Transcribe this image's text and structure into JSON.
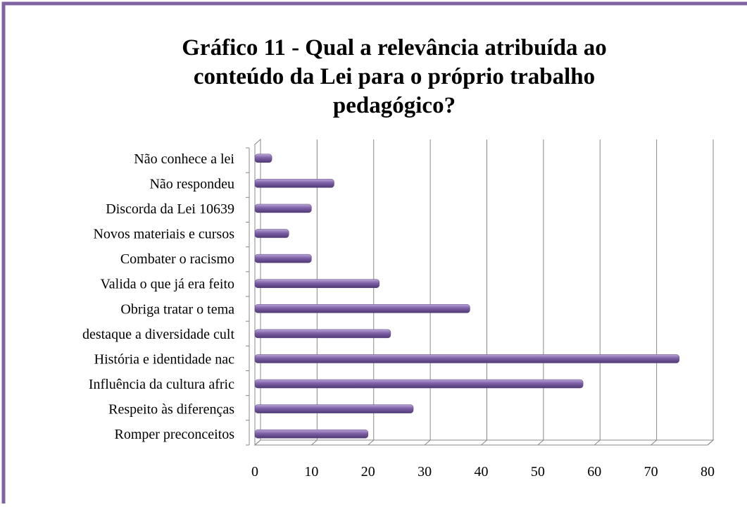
{
  "chart_data": {
    "type": "bar",
    "orientation": "horizontal",
    "title": [
      "Gráfico 11 - Qual a relevância atribuída ao",
      "conteúdo da Lei para o próprio trabalho",
      "pedagógico?"
    ],
    "categories": [
      "Não conhece a lei",
      "Não respondeu",
      "Discorda da Lei 10639",
      "Novos materiais e cursos",
      "Combater o racismo",
      "Valida o que já era feito",
      "Obriga tratar o tema",
      "destaque a diversidade cult",
      "História  e identidade nac",
      "Influência da cultura afric",
      "Respeito às diferenças",
      "Romper preconceitos"
    ],
    "values": [
      3,
      14,
      10,
      6,
      10,
      22,
      38,
      24,
      75,
      58,
      28,
      20
    ],
    "color": "#8064a2",
    "xlim": [
      0,
      80
    ],
    "xticks": [
      0,
      10,
      20,
      30,
      40,
      50,
      60,
      70,
      80
    ],
    "grid": true
  }
}
